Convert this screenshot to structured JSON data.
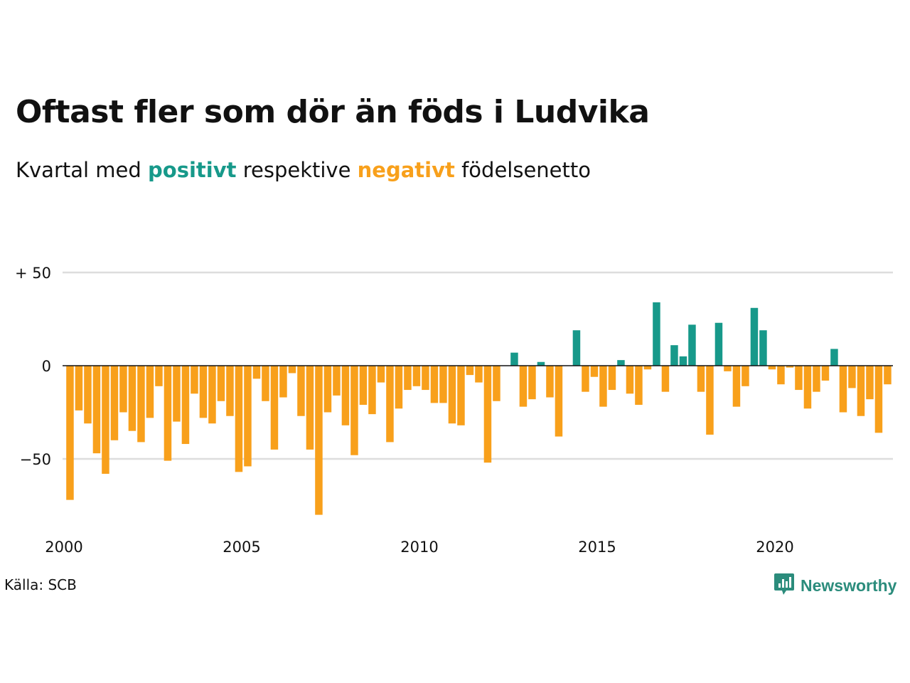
{
  "title": "Oftast fler som dör än föds i Ludvika",
  "subtitle": {
    "prefix": "Kvartal med",
    "positive": "positivt",
    "middle": "respektive",
    "negative": "negativt",
    "suffix": "födelsenetto"
  },
  "source": "Källa: SCB",
  "brand": {
    "name": "Newsworthy",
    "icon": "newsworthy-logo-icon"
  },
  "colors": {
    "positive": "#17998a",
    "negative": "#f8a01b",
    "grid": "#dddddd",
    "zero": "#111111"
  },
  "chart_data": {
    "type": "bar",
    "x_start": 2000,
    "x_step": 0.25,
    "xticks": [
      2000,
      2005,
      2010,
      2015,
      2020
    ],
    "xtick_labels": [
      "2000",
      "2005",
      "2010",
      "2015",
      "2020"
    ],
    "yticks": [
      50,
      0,
      -50
    ],
    "ytick_labels": [
      "+ 50",
      "0",
      "−50"
    ],
    "ylim": [
      -85,
      60
    ],
    "grid": true,
    "values": [
      -72,
      -24,
      -31,
      -47,
      -58,
      -40,
      -25,
      -35,
      -41,
      -28,
      -11,
      -51,
      -30,
      -42,
      -15,
      -28,
      -31,
      -19,
      -27,
      -57,
      -54,
      -7,
      -19,
      -45,
      -17,
      -4,
      -27,
      -45,
      -80,
      -25,
      -16,
      -32,
      -48,
      -21,
      -26,
      -9,
      -41,
      -23,
      -13,
      -11,
      -13,
      -20,
      -20,
      -31,
      -32,
      -5,
      -9,
      -52,
      -19,
      0,
      7,
      -22,
      -18,
      2,
      -17,
      -38,
      0,
      19,
      -14,
      -6,
      -22,
      -13,
      3,
      -15,
      -21,
      -2,
      34,
      -14,
      11,
      5,
      22,
      -14,
      -37,
      23,
      -3,
      -22,
      -11,
      31,
      19,
      -2,
      -10,
      -1,
      -13,
      -23,
      -14,
      -8,
      9,
      -25,
      -12,
      -27,
      -18,
      -36,
      -10
    ]
  }
}
